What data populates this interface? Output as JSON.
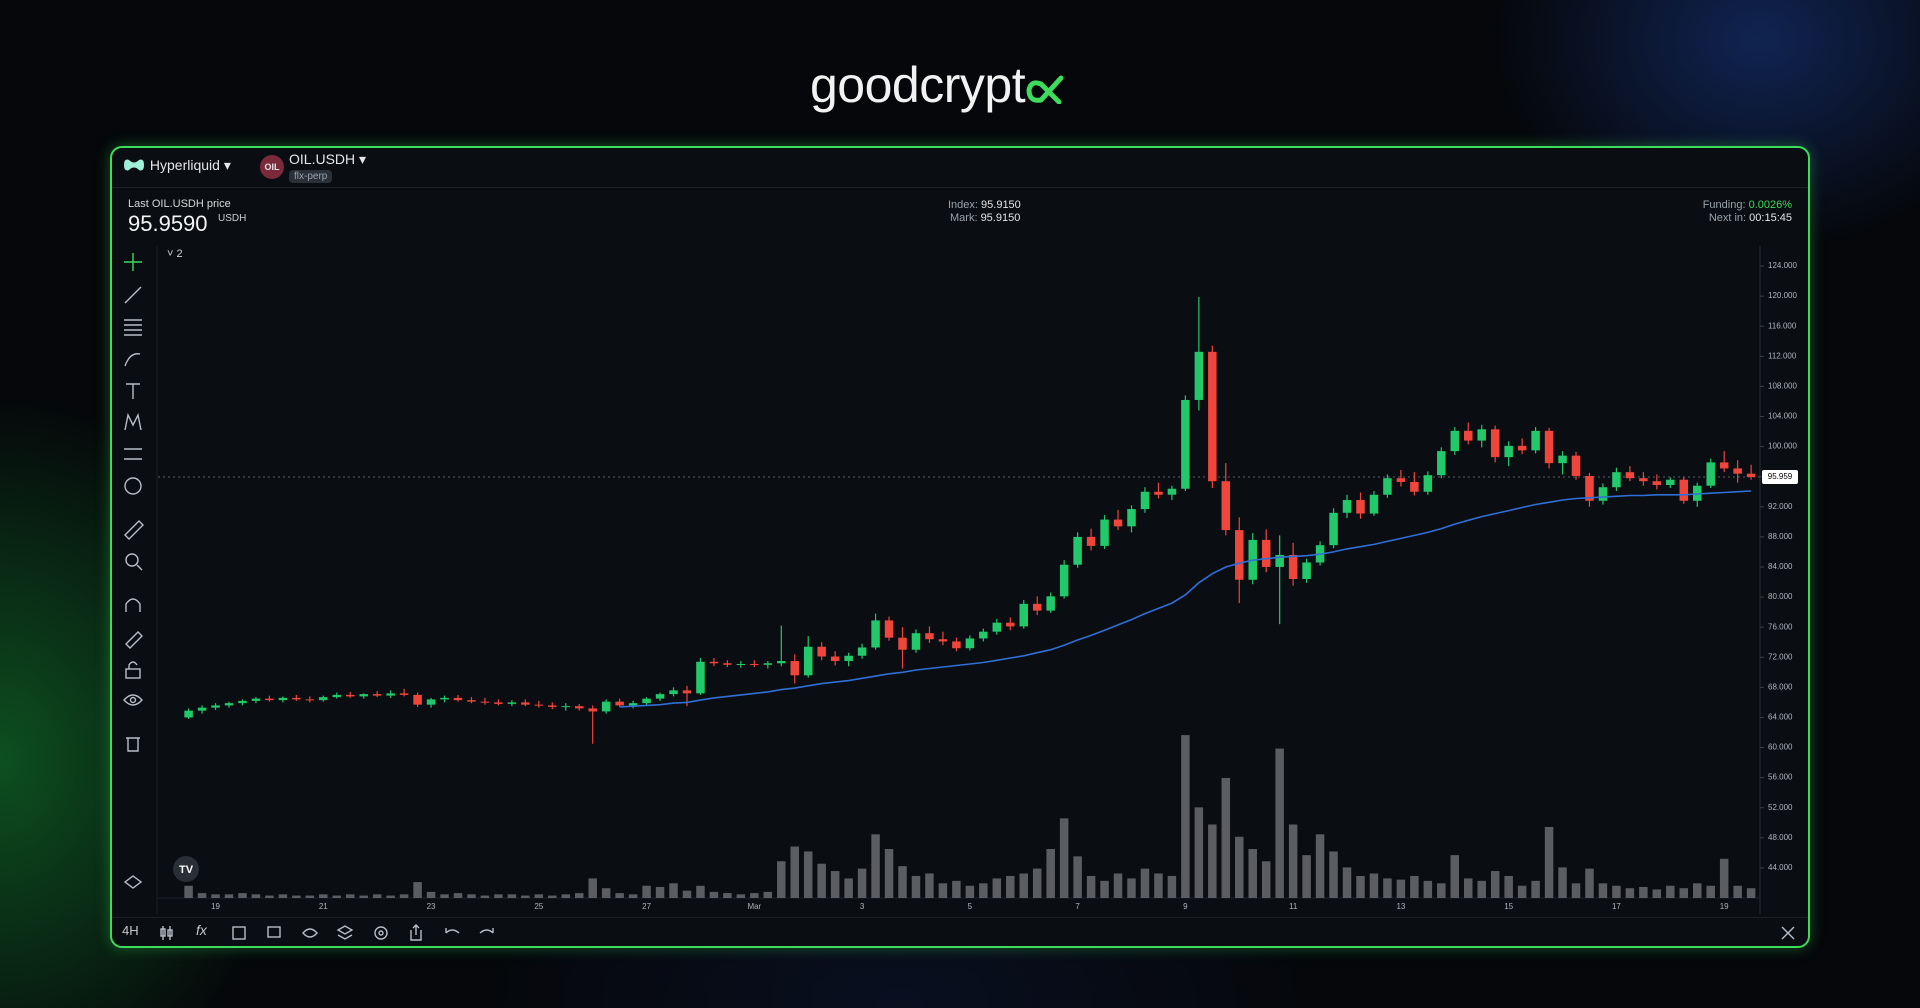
{
  "ui": {
    "brand": "goodcrypt",
    "exchange": "Hyperliquid",
    "coin_badge": "OIL",
    "symbol": "OIL.USDH",
    "market_type": "flx-perp",
    "price_label": "Last OIL.USDH price",
    "price": "95.9590",
    "price_unit": "USDH",
    "index_label": "Index:",
    "index": "95.9150",
    "mark_label": "Mark:",
    "mark": "95.9150",
    "funding_label": "Funding:",
    "funding": "0.0026%",
    "next_label": "Next in:",
    "next": "00:15:45",
    "indicator_count": "2",
    "interval": "4H",
    "fx": "fx"
  },
  "chart_data": {
    "type": "candlestick",
    "grid": false,
    "up_color": "#22c96b",
    "down_color": "#f0453a",
    "volume_color": "#5b5d60",
    "ma_color": "#2f6fd6",
    "ylim": [
      40,
      126
    ],
    "yticks": [
      {
        "value": 44,
        "label": "44.000"
      },
      {
        "value": 48,
        "label": "48.000"
      },
      {
        "value": 52,
        "label": "52.000"
      },
      {
        "value": 56,
        "label": "56.000"
      },
      {
        "value": 60,
        "label": "60.000"
      },
      {
        "value": 64,
        "label": "64.000"
      },
      {
        "value": 68,
        "label": "68.000"
      },
      {
        "value": 72,
        "label": "72.000"
      },
      {
        "value": 76,
        "label": "76.000"
      },
      {
        "value": 80,
        "label": "80.000"
      },
      {
        "value": 84,
        "label": "84.000"
      },
      {
        "value": 88,
        "label": "88.000"
      },
      {
        "value": 92,
        "label": "92.000"
      },
      {
        "value": 96,
        "label": "96.000"
      },
      {
        "value": 100,
        "label": "100.000"
      },
      {
        "value": 104,
        "label": "104.000"
      },
      {
        "value": 108,
        "label": "108.000"
      },
      {
        "value": 112,
        "label": "112.000"
      },
      {
        "value": 116,
        "label": "116.000"
      },
      {
        "value": 120,
        "label": "120.000"
      },
      {
        "value": 124,
        "label": "124.000"
      }
    ],
    "last_price": 95.959,
    "volume_lim": [
      0,
      160
    ],
    "categories": [
      null,
      null,
      "19",
      null,
      null,
      null,
      null,
      null,
      null,
      null,
      "21",
      null,
      null,
      null,
      null,
      null,
      null,
      null,
      "23",
      null,
      null,
      null,
      null,
      null,
      null,
      null,
      "25",
      null,
      null,
      null,
      null,
      null,
      null,
      null,
      "27",
      null,
      null,
      null,
      null,
      null,
      null,
      null,
      "Mar",
      null,
      null,
      null,
      null,
      null,
      null,
      null,
      "3",
      null,
      null,
      null,
      null,
      null,
      null,
      null,
      "5",
      null,
      null,
      null,
      null,
      null,
      null,
      null,
      "7",
      null,
      null,
      null,
      null,
      null,
      null,
      null,
      "9",
      null,
      null,
      null,
      null,
      null,
      null,
      null,
      "11",
      null,
      null,
      null,
      null,
      null,
      null,
      null,
      "13",
      null,
      null,
      null,
      null,
      null,
      null,
      null,
      "15",
      null,
      null,
      null,
      null,
      null,
      null,
      null,
      "17",
      null,
      null,
      null,
      null,
      null,
      null,
      null,
      "19",
      null,
      null
    ],
    "candles": [
      [
        64.0,
        65.2,
        63.8,
        64.9
      ],
      [
        64.9,
        65.6,
        64.5,
        65.3
      ],
      [
        65.3,
        65.9,
        65.0,
        65.6
      ],
      [
        65.6,
        66.1,
        65.3,
        65.9
      ],
      [
        65.9,
        66.4,
        65.6,
        66.2
      ],
      [
        66.2,
        66.7,
        65.9,
        66.5
      ],
      [
        66.5,
        66.9,
        66.1,
        66.3
      ],
      [
        66.3,
        66.8,
        66.0,
        66.6
      ],
      [
        66.6,
        67.0,
        66.2,
        66.4
      ],
      [
        66.4,
        66.8,
        66.0,
        66.3
      ],
      [
        66.3,
        66.9,
        66.1,
        66.7
      ],
      [
        66.7,
        67.3,
        66.5,
        67.0
      ],
      [
        67.0,
        67.4,
        66.6,
        66.8
      ],
      [
        66.8,
        67.2,
        66.5,
        67.1
      ],
      [
        67.1,
        67.5,
        66.7,
        66.9
      ],
      [
        66.9,
        67.6,
        66.6,
        67.2
      ],
      [
        67.2,
        67.8,
        66.8,
        67.0
      ],
      [
        67.0,
        67.3,
        65.4,
        65.7
      ],
      [
        65.7,
        66.6,
        65.3,
        66.4
      ],
      [
        66.4,
        66.9,
        66.0,
        66.6
      ],
      [
        66.6,
        67.0,
        66.1,
        66.3
      ],
      [
        66.3,
        66.7,
        65.9,
        66.1
      ],
      [
        66.1,
        66.6,
        65.7,
        66.0
      ],
      [
        66.0,
        66.4,
        65.6,
        65.8
      ],
      [
        65.8,
        66.3,
        65.5,
        66.0
      ],
      [
        66.0,
        66.4,
        65.5,
        65.7
      ],
      [
        65.7,
        66.2,
        65.3,
        65.6
      ],
      [
        65.6,
        66.0,
        65.1,
        65.4
      ],
      [
        65.4,
        65.9,
        64.9,
        65.5
      ],
      [
        65.5,
        65.8,
        64.9,
        65.2
      ],
      [
        65.2,
        65.6,
        60.5,
        64.8
      ],
      [
        64.8,
        66.4,
        64.5,
        66.1
      ],
      [
        66.1,
        66.5,
        65.4,
        65.6
      ],
      [
        65.6,
        66.2,
        65.2,
        65.9
      ],
      [
        65.9,
        66.7,
        65.6,
        66.5
      ],
      [
        66.5,
        67.3,
        66.2,
        67.1
      ],
      [
        67.1,
        68.0,
        66.8,
        67.6
      ],
      [
        67.6,
        68.2,
        65.5,
        67.2
      ],
      [
        67.2,
        71.9,
        67.0,
        71.4
      ],
      [
        71.4,
        71.9,
        70.8,
        71.2
      ],
      [
        71.2,
        71.6,
        70.7,
        71.0
      ],
      [
        71.0,
        71.5,
        70.6,
        71.1
      ],
      [
        71.1,
        71.6,
        70.7,
        71.0
      ],
      [
        71.0,
        71.5,
        70.5,
        71.2
      ],
      [
        71.2,
        76.2,
        70.8,
        71.5
      ],
      [
        71.5,
        72.4,
        68.5,
        69.6
      ],
      [
        69.6,
        74.8,
        69.3,
        73.4
      ],
      [
        73.4,
        74.0,
        71.6,
        72.1
      ],
      [
        72.1,
        72.8,
        70.9,
        71.5
      ],
      [
        71.5,
        72.6,
        70.8,
        72.2
      ],
      [
        72.2,
        73.8,
        71.8,
        73.3
      ],
      [
        73.3,
        77.8,
        73.0,
        76.9
      ],
      [
        76.9,
        77.4,
        74.2,
        74.6
      ],
      [
        74.6,
        76.0,
        70.5,
        73.0
      ],
      [
        73.0,
        75.7,
        72.6,
        75.2
      ],
      [
        75.2,
        76.1,
        73.9,
        74.4
      ],
      [
        74.4,
        75.4,
        73.6,
        74.1
      ],
      [
        74.1,
        74.6,
        72.8,
        73.2
      ],
      [
        73.2,
        74.9,
        72.9,
        74.5
      ],
      [
        74.5,
        75.8,
        74.1,
        75.4
      ],
      [
        75.4,
        77.1,
        75.0,
        76.6
      ],
      [
        76.6,
        77.3,
        75.6,
        76.1
      ],
      [
        76.1,
        79.6,
        75.8,
        79.1
      ],
      [
        79.1,
        80.1,
        77.6,
        78.2
      ],
      [
        78.2,
        80.6,
        77.9,
        80.1
      ],
      [
        80.1,
        84.9,
        79.8,
        84.3
      ],
      [
        84.3,
        88.6,
        83.9,
        88.0
      ],
      [
        88.0,
        89.1,
        86.2,
        86.8
      ],
      [
        86.8,
        90.9,
        86.4,
        90.3
      ],
      [
        90.3,
        91.6,
        88.9,
        89.4
      ],
      [
        89.4,
        92.2,
        88.6,
        91.7
      ],
      [
        91.7,
        94.6,
        91.2,
        94.0
      ],
      [
        94.0,
        95.2,
        93.1,
        93.6
      ],
      [
        93.6,
        94.8,
        92.9,
        94.4
      ],
      [
        94.4,
        106.8,
        94.1,
        106.2
      ],
      [
        106.2,
        119.9,
        104.8,
        112.6
      ],
      [
        112.6,
        113.4,
        94.5,
        95.4
      ],
      [
        95.4,
        97.8,
        88.2,
        88.9
      ],
      [
        88.9,
        90.6,
        79.2,
        82.3
      ],
      [
        82.3,
        88.5,
        81.7,
        87.6
      ],
      [
        87.6,
        89.0,
        83.3,
        84.0
      ],
      [
        84.0,
        88.2,
        76.4,
        85.6
      ],
      [
        85.6,
        87.2,
        81.5,
        82.4
      ],
      [
        82.4,
        85.1,
        81.9,
        84.6
      ],
      [
        84.6,
        87.4,
        84.2,
        86.9
      ],
      [
        86.9,
        91.8,
        86.5,
        91.2
      ],
      [
        91.2,
        93.6,
        90.5,
        92.9
      ],
      [
        92.9,
        93.9,
        90.4,
        91.1
      ],
      [
        91.1,
        94.1,
        90.8,
        93.6
      ],
      [
        93.6,
        96.3,
        93.2,
        95.8
      ],
      [
        95.8,
        96.9,
        94.7,
        95.3
      ],
      [
        95.3,
        96.6,
        93.5,
        94.0
      ],
      [
        94.0,
        96.7,
        93.6,
        96.2
      ],
      [
        96.2,
        99.9,
        95.8,
        99.4
      ],
      [
        99.4,
        102.6,
        98.9,
        102.1
      ],
      [
        102.1,
        103.2,
        100.3,
        100.8
      ],
      [
        100.8,
        102.9,
        99.9,
        102.3
      ],
      [
        102.3,
        102.8,
        97.9,
        98.6
      ],
      [
        98.6,
        100.7,
        97.4,
        100.1
      ],
      [
        100.1,
        101.1,
        99.0,
        99.5
      ],
      [
        99.5,
        102.6,
        99.1,
        102.1
      ],
      [
        102.1,
        102.5,
        97.1,
        97.8
      ],
      [
        97.8,
        99.4,
        96.3,
        98.8
      ],
      [
        98.8,
        99.3,
        95.6,
        96.1
      ],
      [
        96.1,
        96.5,
        92.0,
        92.8
      ],
      [
        92.8,
        95.1,
        92.3,
        94.6
      ],
      [
        94.6,
        97.2,
        94.1,
        96.6
      ],
      [
        96.6,
        97.4,
        95.4,
        95.8
      ],
      [
        95.8,
        96.6,
        94.8,
        95.4
      ],
      [
        95.4,
        96.3,
        94.3,
        94.9
      ],
      [
        94.9,
        95.9,
        94.5,
        95.6
      ],
      [
        95.6,
        96.0,
        92.4,
        92.8
      ],
      [
        92.8,
        95.2,
        92.0,
        94.8
      ],
      [
        94.8,
        98.4,
        94.5,
        97.9
      ],
      [
        97.9,
        99.4,
        96.6,
        97.1
      ],
      [
        97.1,
        98.2,
        95.2,
        96.4
      ],
      [
        96.4,
        97.6,
        95.6,
        95.959
      ]
    ],
    "volume": [
      10,
      4,
      3,
      3,
      4,
      3,
      2,
      3,
      2,
      2,
      3,
      2,
      3,
      2,
      3,
      2,
      3,
      13,
      5,
      3,
      4,
      3,
      2,
      3,
      3,
      2,
      3,
      2,
      3,
      4,
      16,
      8,
      4,
      3,
      10,
      9,
      12,
      6,
      10,
      5,
      4,
      3,
      4,
      5,
      30,
      42,
      38,
      28,
      22,
      16,
      24,
      52,
      40,
      26,
      18,
      20,
      12,
      14,
      10,
      12,
      16,
      18,
      20,
      24,
      40,
      65,
      34,
      18,
      14,
      20,
      16,
      24,
      20,
      18,
      133,
      74,
      60,
      98,
      50,
      40,
      30,
      122,
      60,
      35,
      52,
      38,
      25,
      18,
      20,
      16,
      15,
      18,
      14,
      12,
      35,
      16,
      14,
      22,
      18,
      10,
      14,
      58,
      25,
      12,
      24,
      12,
      10,
      8,
      9,
      7,
      10,
      8,
      12,
      10,
      32,
      10,
      8
    ],
    "ma_values": [
      null,
      null,
      null,
      null,
      null,
      null,
      null,
      null,
      null,
      null,
      null,
      null,
      null,
      null,
      null,
      null,
      null,
      null,
      null,
      null,
      null,
      null,
      null,
      null,
      null,
      null,
      null,
      null,
      null,
      null,
      null,
      null,
      65.4,
      65.5,
      65.6,
      65.7,
      65.9,
      66.0,
      66.3,
      66.6,
      66.8,
      67.0,
      67.2,
      67.4,
      67.7,
      67.9,
      68.2,
      68.5,
      68.7,
      68.9,
      69.2,
      69.5,
      69.8,
      70.0,
      70.3,
      70.5,
      70.7,
      70.9,
      71.1,
      71.3,
      71.6,
      71.9,
      72.2,
      72.6,
      73.0,
      73.6,
      74.3,
      74.9,
      75.6,
      76.3,
      77.0,
      77.8,
      78.5,
      79.2,
      80.3,
      81.9,
      83.1,
      84.0,
      84.5,
      84.9,
      85.1,
      85.3,
      85.4,
      85.5,
      85.7,
      86.0,
      86.4,
      86.7,
      87.0,
      87.4,
      87.8,
      88.2,
      88.6,
      89.1,
      89.7,
      90.2,
      90.7,
      91.1,
      91.5,
      91.9,
      92.3,
      92.6,
      92.9,
      93.1,
      93.2,
      93.3,
      93.4,
      93.5,
      93.5,
      93.6,
      93.6,
      93.6,
      93.7,
      93.8,
      93.9,
      94.0,
      94.1
    ]
  }
}
